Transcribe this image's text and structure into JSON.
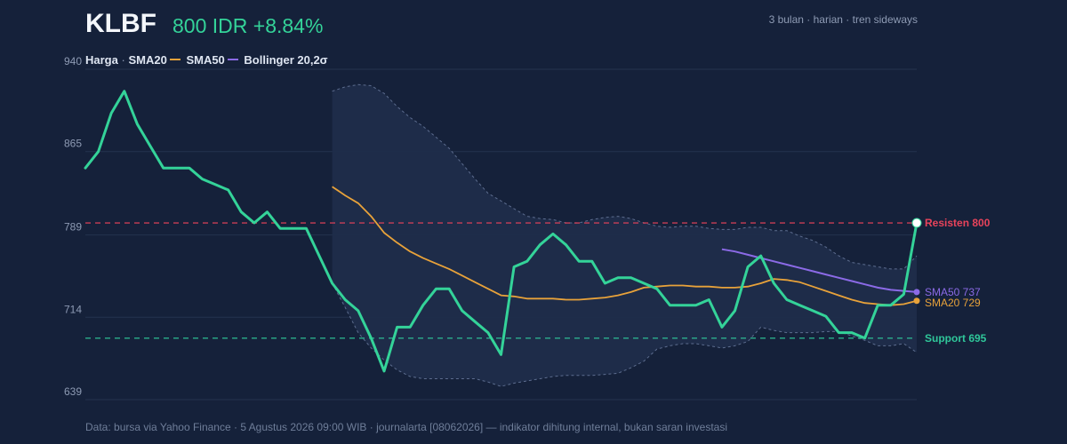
{
  "header": {
    "ticker": "KLBF",
    "price_change": "800 IDR +8.84%",
    "meta": "3 bulan · harian · tren sideways"
  },
  "legend": {
    "price": "Harga",
    "sep": "·",
    "sma20": "SMA20",
    "sma50": "SMA50",
    "bollinger": "Bollinger 20,2σ"
  },
  "footer": "Data: bursa via Yahoo Finance · 5 Agustus 2026 09:00 WIB · journalarta [08062026] — indikator dihitung internal, bukan saran investasi",
  "colors": {
    "background": "#15213a",
    "grid": "#25324e",
    "price": "#34d399",
    "sma20": "#e8a23a",
    "sma50": "#8b6ae6",
    "band_fill": "#1f2d4a",
    "band_line": "#5d6d8f",
    "resistance": "#e8435b",
    "support": "#2fc79a",
    "axis_text": "#8e9bb4"
  },
  "chart_data": {
    "type": "line",
    "ylim": [
      639,
      940
    ],
    "yticks": [
      639,
      714,
      789,
      865,
      940
    ],
    "x_count": 65,
    "series": [
      {
        "name": "Harga",
        "x": [
          0,
          1,
          2,
          3,
          4,
          5,
          6,
          7,
          8,
          9,
          10,
          11,
          12,
          13,
          14,
          15,
          16,
          17,
          18,
          19,
          20,
          21,
          22,
          23,
          24,
          25,
          26,
          27,
          28,
          29,
          30,
          31,
          32,
          33,
          34,
          35,
          36,
          37,
          38,
          39,
          40,
          41,
          42,
          43,
          44,
          45,
          46,
          47,
          48,
          49,
          50,
          51,
          52,
          53,
          54,
          55,
          56,
          57,
          58,
          59,
          60,
          61,
          62,
          63,
          64
        ],
        "values": [
          850,
          865,
          900,
          920,
          890,
          870,
          850,
          850,
          850,
          840,
          835,
          830,
          810,
          800,
          810,
          795,
          795,
          795,
          770,
          745,
          730,
          720,
          695,
          665,
          705,
          705,
          725,
          740,
          740,
          720,
          710,
          700,
          680,
          760,
          765,
          780,
          790,
          780,
          765,
          765,
          745,
          750,
          750,
          745,
          740,
          725,
          725,
          725,
          730,
          705,
          720,
          760,
          770,
          745,
          730,
          725,
          720,
          715,
          700,
          700,
          695,
          725,
          725,
          735,
          800
        ]
      },
      {
        "name": "SMA20",
        "x": [
          19,
          20,
          21,
          22,
          23,
          24,
          25,
          26,
          27,
          28,
          29,
          30,
          31,
          32,
          33,
          34,
          35,
          36,
          37,
          38,
          39,
          40,
          41,
          42,
          43,
          44,
          45,
          46,
          47,
          48,
          49,
          50,
          51,
          52,
          53,
          54,
          55,
          56,
          57,
          58,
          59,
          60,
          61,
          62,
          63,
          64
        ],
        "values": [
          833,
          825,
          818,
          806,
          791,
          782,
          774,
          768,
          763,
          758,
          752,
          746,
          740,
          734,
          733,
          731,
          731,
          731,
          730,
          730,
          731,
          732,
          734,
          737,
          741,
          742,
          743,
          743,
          742,
          742,
          741,
          741,
          742,
          745,
          749,
          748,
          746,
          742,
          738,
          734,
          730,
          727,
          726,
          725,
          726,
          729
        ]
      },
      {
        "name": "SMA50",
        "x": [
          49,
          50,
          51,
          52,
          53,
          54,
          55,
          56,
          57,
          58,
          59,
          60,
          61,
          62,
          63,
          64
        ],
        "values": [
          776,
          774,
          771,
          768,
          765,
          762,
          759,
          756,
          753,
          750,
          747,
          744,
          741,
          739,
          738,
          737
        ]
      },
      {
        "name": "Bollinger upper",
        "x": [
          19,
          20,
          21,
          22,
          23,
          24,
          25,
          26,
          27,
          28,
          29,
          30,
          31,
          32,
          33,
          34,
          35,
          36,
          37,
          38,
          39,
          40,
          41,
          42,
          43,
          44,
          45,
          46,
          47,
          48,
          49,
          50,
          51,
          52,
          53,
          54,
          55,
          56,
          57,
          58,
          59,
          60,
          61,
          62,
          63,
          64
        ],
        "values": [
          920,
          924,
          926,
          925,
          918,
          906,
          896,
          888,
          878,
          868,
          854,
          840,
          827,
          820,
          813,
          806,
          804,
          803,
          800,
          800,
          803,
          805,
          806,
          804,
          800,
          797,
          796,
          797,
          797,
          795,
          794,
          794,
          796,
          796,
          793,
          793,
          788,
          784,
          778,
          770,
          764,
          762,
          760,
          758,
          758,
          770
        ]
      },
      {
        "name": "Bollinger lower",
        "x": [
          19,
          20,
          21,
          22,
          23,
          24,
          25,
          26,
          27,
          28,
          29,
          30,
          31,
          32,
          33,
          34,
          35,
          36,
          37,
          38,
          39,
          40,
          41,
          42,
          43,
          44,
          45,
          46,
          47,
          48,
          49,
          50,
          51,
          52,
          53,
          54,
          55,
          56,
          57,
          58,
          59,
          60,
          61,
          62,
          63,
          64
        ],
        "values": [
          745,
          723,
          700,
          686,
          675,
          666,
          660,
          658,
          658,
          658,
          658,
          658,
          655,
          651,
          654,
          656,
          658,
          660,
          661,
          661,
          661,
          662,
          663,
          668,
          674,
          685,
          688,
          690,
          690,
          688,
          686,
          688,
          692,
          705,
          702,
          700,
          700,
          700,
          701,
          701,
          697,
          693,
          688,
          688,
          690,
          682
        ]
      }
    ],
    "levels": [
      {
        "name": "Resisten",
        "value": 800,
        "label": "Resisten 800"
      },
      {
        "name": "Support",
        "value": 695,
        "label": "Support 695"
      }
    ],
    "end_labels": {
      "sma50": "SMA50 737",
      "sma20": "SMA20 729"
    },
    "grid": true
  }
}
